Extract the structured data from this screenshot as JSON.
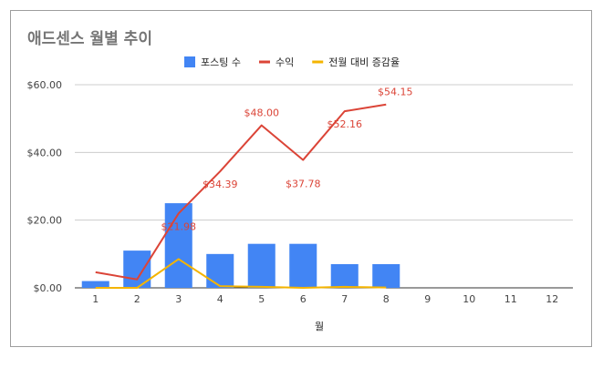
{
  "chart_data": {
    "type": "bar",
    "title": "애드센스 월별 추이",
    "xlabel": "월",
    "ylabel": "",
    "categories": [
      "1",
      "2",
      "3",
      "4",
      "5",
      "6",
      "7",
      "8",
      "9",
      "10",
      "11",
      "12"
    ],
    "ylim": [
      0,
      60
    ],
    "yticks": [
      "$0.00",
      "$20.00",
      "$40.00",
      "$60.00"
    ],
    "ytick_values": [
      0,
      20,
      40,
      60
    ],
    "legend_position": "top",
    "series": [
      {
        "name": "포스팅 수",
        "type": "bar",
        "color": "#4285f4",
        "values": [
          2,
          11,
          25,
          10,
          13,
          13,
          7,
          7,
          null,
          null,
          null,
          null
        ]
      },
      {
        "name": "수익",
        "type": "line",
        "color": "#db4437",
        "values": [
          4.6,
          2.5,
          21.98,
          34.39,
          48.0,
          37.78,
          52.16,
          54.15,
          null,
          null,
          null,
          null
        ],
        "labels": [
          "",
          "",
          "$21.98",
          "$34.39",
          "$48.00",
          "$37.78",
          "$52.16",
          "$54.15",
          "",
          "",
          "",
          ""
        ]
      },
      {
        "name": "전월 대비 증감율",
        "type": "line",
        "color": "#f4b400",
        "values": [
          0,
          0,
          8.5,
          0.5,
          0.3,
          0,
          0.3,
          0.1,
          null,
          null,
          null,
          null
        ]
      }
    ]
  }
}
